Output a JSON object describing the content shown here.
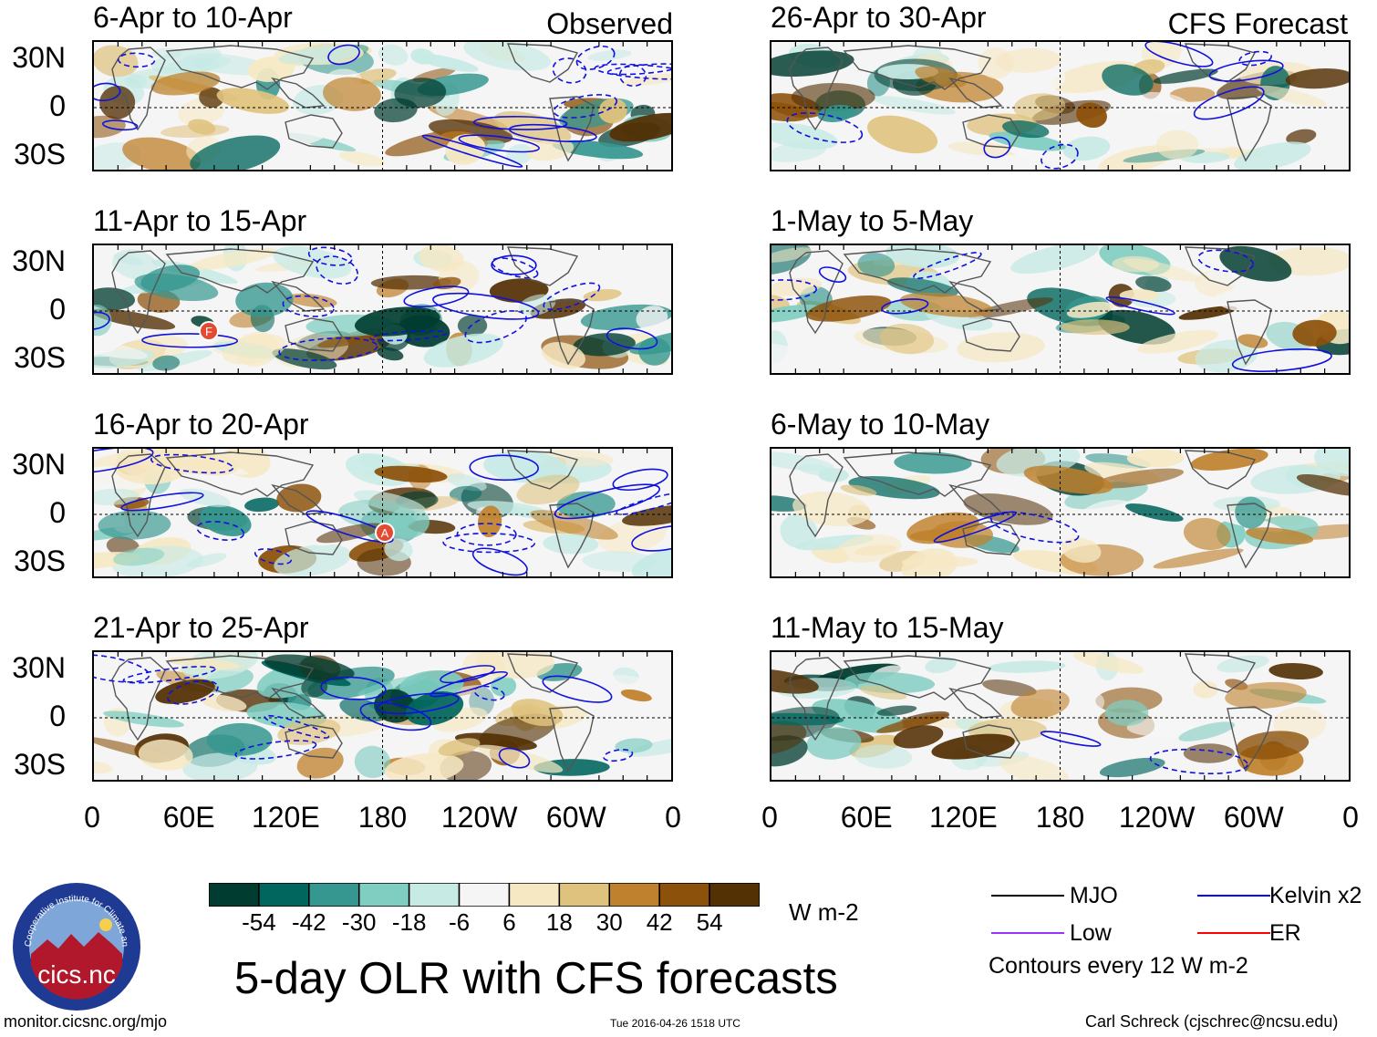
{
  "header": {
    "observed_label": "Observed",
    "forecast_label": "CFS Forecast"
  },
  "observed_panels": [
    {
      "title": "6-Apr to 10-Apr"
    },
    {
      "title": "11-Apr to 15-Apr"
    },
    {
      "title": "16-Apr to 20-Apr"
    },
    {
      "title": "21-Apr to 25-Apr"
    }
  ],
  "forecast_panels": [
    {
      "title": "26-Apr to 30-Apr"
    },
    {
      "title": "1-May to 5-May"
    },
    {
      "title": "6-May to 10-May"
    },
    {
      "title": "11-May to 15-May"
    }
  ],
  "axes": {
    "lat_labels": [
      "30N",
      "0",
      "30S"
    ],
    "lon_labels": [
      "0",
      "60E",
      "120E",
      "180",
      "120W",
      "60W",
      "0"
    ]
  },
  "colorbar": {
    "ticks": [
      "-54",
      "-42",
      "-30",
      "-18",
      "-6",
      "6",
      "18",
      "30",
      "42",
      "54"
    ],
    "units": "W m-2",
    "colors": [
      "#003c30",
      "#01665e",
      "#35978f",
      "#80cdc1",
      "#c7eae5",
      "#f5f5f5",
      "#f6e8c3",
      "#dfc27d",
      "#bf812d",
      "#8c510a",
      "#543005"
    ]
  },
  "legend": {
    "items": [
      {
        "label": "MJO",
        "color": "#000000"
      },
      {
        "label": "Kelvin x2",
        "color": "#0000ff"
      },
      {
        "label": "Low",
        "color": "#9933ff"
      },
      {
        "label": "ER",
        "color": "#ff0000"
      }
    ],
    "contour_note": "Contours every 12 W m-2"
  },
  "main_title": "5-day OLR with CFS forecasts",
  "logo": {
    "text": "cics.nc",
    "ring_text": "Cooperative Institute for Climate and Satellites"
  },
  "footer": {
    "url": "monitor.cicsnc.org/mjo",
    "timestamp": "Tue 2016-04-26 1518 UTC",
    "author": "Carl Schreck (cjschrec@ncsu.edu)"
  },
  "storm_markers": [
    {
      "label": "F"
    },
    {
      "label": "A"
    }
  ]
}
